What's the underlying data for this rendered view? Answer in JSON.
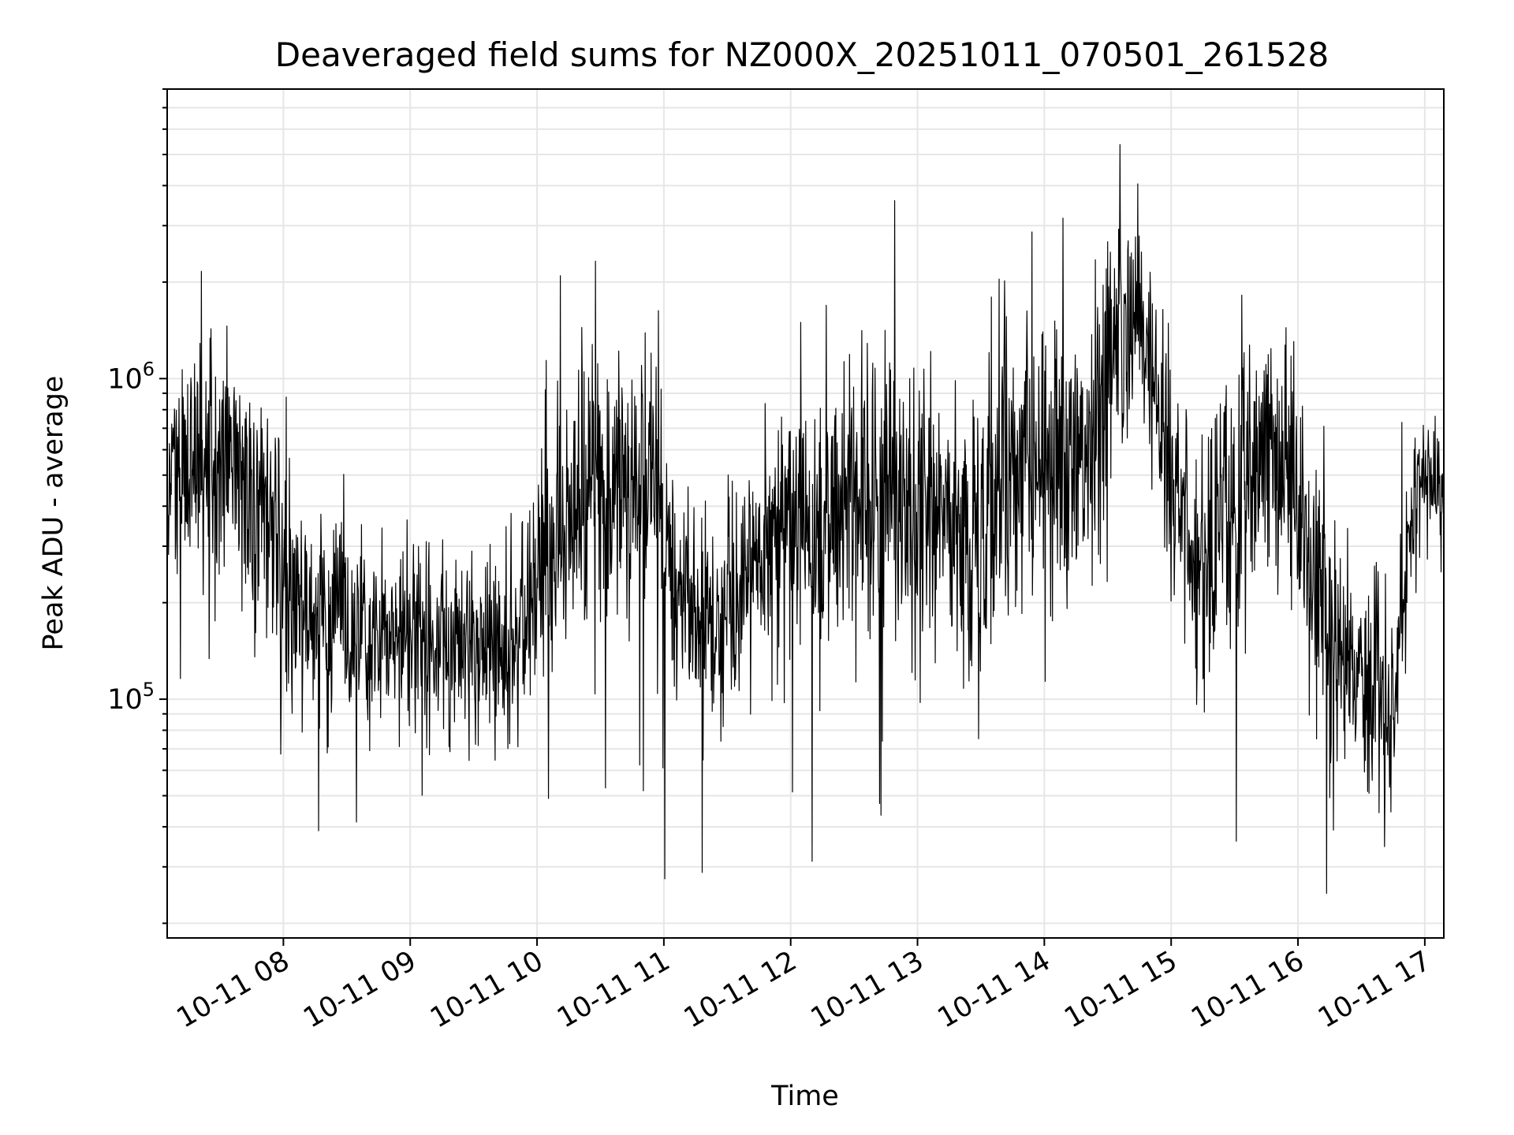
{
  "chart_data": {
    "type": "line",
    "title": "Deaveraged field sums for NZ000X_20251011_070501_261528",
    "xlabel": "Time",
    "ylabel": "Peak ADU - average",
    "yscale": "log",
    "ylim": [
      18000,
      8000000
    ],
    "xlim": [
      "2025-10-11 07:05:01",
      "2025-10-11 17:09:00"
    ],
    "grid": true,
    "line_color": "#000000",
    "grid_color": "#e6e6e6",
    "x_ticks": [
      {
        "value": "2025-10-11 08:00",
        "label": "10-11 08"
      },
      {
        "value": "2025-10-11 09:00",
        "label": "10-11 09"
      },
      {
        "value": "2025-10-11 10:00",
        "label": "10-11 10"
      },
      {
        "value": "2025-10-11 11:00",
        "label": "10-11 11"
      },
      {
        "value": "2025-10-11 12:00",
        "label": "10-11 12"
      },
      {
        "value": "2025-10-11 13:00",
        "label": "10-11 13"
      },
      {
        "value": "2025-10-11 14:00",
        "label": "10-11 14"
      },
      {
        "value": "2025-10-11 15:00",
        "label": "10-11 15"
      },
      {
        "value": "2025-10-11 16:00",
        "label": "10-11 16"
      },
      {
        "value": "2025-10-11 17:00",
        "label": "10-11 17"
      }
    ],
    "y_ticks": [
      {
        "value": 100000,
        "base": "10",
        "exp": "5"
      },
      {
        "value": 1000000,
        "base": "10",
        "exp": "6"
      }
    ],
    "series": [
      {
        "x": [
          "2025-10-11 07:05",
          "2025-10-11 07:15",
          "2025-10-11 07:25",
          "2025-10-11 07:35",
          "2025-10-11 07:45",
          "2025-10-11 07:55",
          "2025-10-11 08:05",
          "2025-10-11 08:15",
          "2025-10-11 08:25",
          "2025-10-11 08:35",
          "2025-10-11 08:45",
          "2025-10-11 08:55",
          "2025-10-11 09:05",
          "2025-10-11 09:15",
          "2025-10-11 09:25",
          "2025-10-11 09:35",
          "2025-10-11 09:45",
          "2025-10-11 09:55",
          "2025-10-11 10:05",
          "2025-10-11 10:15",
          "2025-10-11 10:25",
          "2025-10-11 10:35",
          "2025-10-11 10:45",
          "2025-10-11 10:55",
          "2025-10-11 11:05",
          "2025-10-11 11:15",
          "2025-10-11 11:25",
          "2025-10-11 11:35",
          "2025-10-11 11:45",
          "2025-10-11 11:55",
          "2025-10-11 12:05",
          "2025-10-11 12:15",
          "2025-10-11 12:25",
          "2025-10-11 12:35",
          "2025-10-11 12:45",
          "2025-10-11 12:55",
          "2025-10-11 13:05",
          "2025-10-11 13:15",
          "2025-10-11 13:25",
          "2025-10-11 13:35",
          "2025-10-11 13:45",
          "2025-10-11 13:55",
          "2025-10-11 14:05",
          "2025-10-11 14:15",
          "2025-10-11 14:25",
          "2025-10-11 14:35",
          "2025-10-11 14:45",
          "2025-10-11 14:55",
          "2025-10-11 15:05",
          "2025-10-11 15:15",
          "2025-10-11 15:25",
          "2025-10-11 15:35",
          "2025-10-11 15:45",
          "2025-10-11 15:55",
          "2025-10-11 16:05",
          "2025-10-11 16:15",
          "2025-10-11 16:25",
          "2025-10-11 16:35",
          "2025-10-11 16:45",
          "2025-10-11 16:55",
          "2025-10-11 17:05"
        ],
        "y": [
          380000,
          550000,
          650000,
          520000,
          420000,
          320000,
          210000,
          180000,
          160000,
          140000,
          150000,
          160000,
          150000,
          145000,
          160000,
          150000,
          140000,
          190000,
          260000,
          380000,
          470000,
          430000,
          470000,
          480000,
          220000,
          190000,
          170000,
          200000,
          260000,
          300000,
          330000,
          380000,
          420000,
          460000,
          440000,
          400000,
          380000,
          330000,
          300000,
          420000,
          550000,
          520000,
          600000,
          520000,
          750000,
          1500000,
          1300000,
          800000,
          380000,
          240000,
          320000,
          420000,
          550000,
          600000,
          250000,
          160000,
          140000,
          100000,
          90000,
          430000,
          480000
        ],
        "spread_factor": [
          3.5,
          3.5,
          3.5,
          3.0,
          3.0,
          3.0,
          2.8,
          2.6,
          2.6,
          2.5,
          2.5,
          2.5,
          2.5,
          2.5,
          2.4,
          2.5,
          2.6,
          2.8,
          3.0,
          3.2,
          3.5,
          3.5,
          3.5,
          3.6,
          3.0,
          2.8,
          2.8,
          2.8,
          3.0,
          3.2,
          3.2,
          3.4,
          3.4,
          3.5,
          3.5,
          3.5,
          3.5,
          3.6,
          3.6,
          3.8,
          3.8,
          3.8,
          3.6,
          3.6,
          3.6,
          3.0,
          3.0,
          3.2,
          3.6,
          3.6,
          3.6,
          3.6,
          3.6,
          3.6,
          3.2,
          3.0,
          3.0,
          2.8,
          2.8,
          1.8,
          1.8
        ]
      }
    ]
  }
}
